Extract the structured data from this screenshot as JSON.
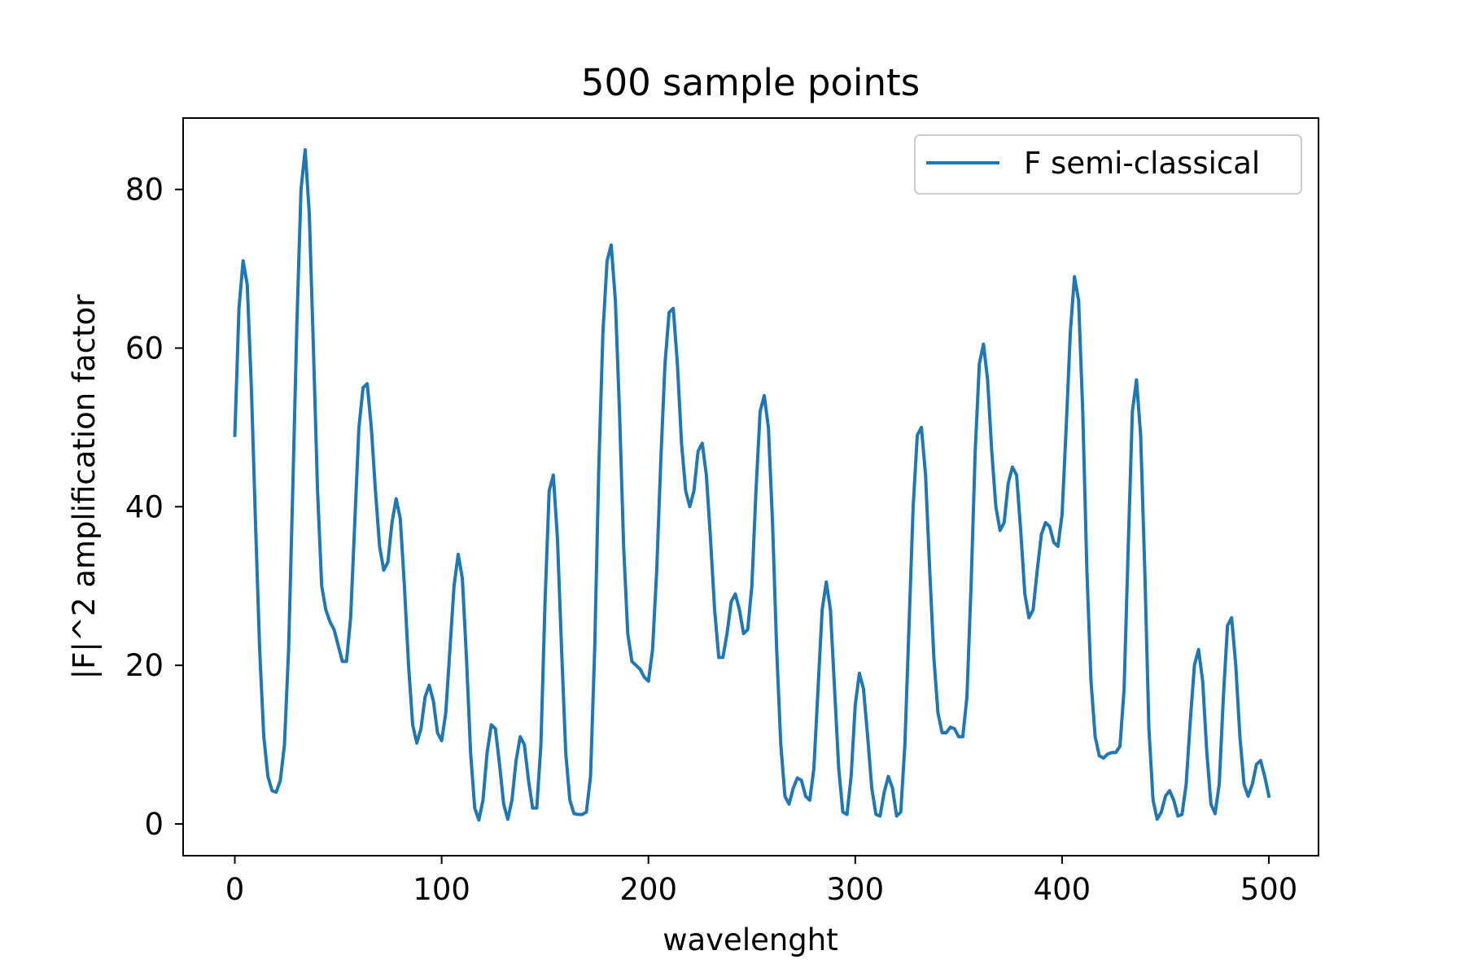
{
  "chart_data": {
    "type": "line",
    "title": "500 sample points",
    "xlabel": "wavelenght",
    "ylabel": "|F|^2 amplification factor",
    "xlim": [
      -25,
      524
    ],
    "ylim": [
      -4,
      89
    ],
    "xticks": [
      0,
      100,
      200,
      300,
      400,
      500
    ],
    "yticks": [
      0,
      20,
      40,
      60,
      80
    ],
    "grid": false,
    "legend_position": "top-right",
    "series": [
      {
        "name": "F semi-classical",
        "color": "#1f77b4",
        "points": [
          [
            0,
            49
          ],
          [
            2,
            65
          ],
          [
            4,
            71
          ],
          [
            6,
            68
          ],
          [
            8,
            55
          ],
          [
            10,
            38
          ],
          [
            12,
            22
          ],
          [
            14,
            11
          ],
          [
            16,
            6
          ],
          [
            18,
            4.2
          ],
          [
            20,
            4
          ],
          [
            22,
            5.5
          ],
          [
            24,
            10
          ],
          [
            26,
            22
          ],
          [
            28,
            42
          ],
          [
            30,
            63
          ],
          [
            32,
            80
          ],
          [
            34,
            85
          ],
          [
            36,
            77
          ],
          [
            38,
            60
          ],
          [
            40,
            42
          ],
          [
            42,
            30
          ],
          [
            44,
            27
          ],
          [
            46,
            25.5
          ],
          [
            48,
            24.5
          ],
          [
            50,
            22.5
          ],
          [
            52,
            20.5
          ],
          [
            54,
            20.5
          ],
          [
            56,
            26
          ],
          [
            58,
            38
          ],
          [
            60,
            50
          ],
          [
            62,
            55
          ],
          [
            64,
            55.5
          ],
          [
            66,
            50
          ],
          [
            68,
            42
          ],
          [
            70,
            35
          ],
          [
            72,
            32
          ],
          [
            74,
            33
          ],
          [
            76,
            38
          ],
          [
            78,
            41
          ],
          [
            80,
            38.5
          ],
          [
            82,
            30
          ],
          [
            84,
            20
          ],
          [
            86,
            12.5
          ],
          [
            88,
            10.2
          ],
          [
            90,
            12
          ],
          [
            92,
            16
          ],
          [
            94,
            17.5
          ],
          [
            96,
            15.5
          ],
          [
            98,
            11.5
          ],
          [
            100,
            10.5
          ],
          [
            102,
            14
          ],
          [
            104,
            22
          ],
          [
            106,
            30
          ],
          [
            108,
            34
          ],
          [
            110,
            31
          ],
          [
            112,
            21
          ],
          [
            114,
            9
          ],
          [
            116,
            2
          ],
          [
            118,
            0.5
          ],
          [
            120,
            3
          ],
          [
            122,
            9
          ],
          [
            124,
            12.5
          ],
          [
            126,
            12
          ],
          [
            128,
            7.5
          ],
          [
            130,
            2.5
          ],
          [
            132,
            0.6
          ],
          [
            134,
            3
          ],
          [
            136,
            8
          ],
          [
            138,
            11
          ],
          [
            140,
            10
          ],
          [
            142,
            5.5
          ],
          [
            144,
            2
          ],
          [
            146,
            2
          ],
          [
            148,
            10
          ],
          [
            150,
            28
          ],
          [
            152,
            42
          ],
          [
            154,
            44
          ],
          [
            156,
            36
          ],
          [
            158,
            22
          ],
          [
            160,
            9
          ],
          [
            162,
            3
          ],
          [
            164,
            1.3
          ],
          [
            166,
            1.2
          ],
          [
            168,
            1.2
          ],
          [
            170,
            1.5
          ],
          [
            172,
            6
          ],
          [
            174,
            22
          ],
          [
            176,
            45
          ],
          [
            178,
            62
          ],
          [
            180,
            71
          ],
          [
            182,
            73
          ],
          [
            184,
            66
          ],
          [
            186,
            52
          ],
          [
            188,
            35
          ],
          [
            190,
            24
          ],
          [
            192,
            20.5
          ],
          [
            194,
            20
          ],
          [
            196,
            19.5
          ],
          [
            198,
            18.5
          ],
          [
            200,
            18
          ],
          [
            202,
            22
          ],
          [
            204,
            32
          ],
          [
            206,
            46
          ],
          [
            208,
            58
          ],
          [
            210,
            64.5
          ],
          [
            212,
            65
          ],
          [
            214,
            58
          ],
          [
            216,
            48
          ],
          [
            218,
            42
          ],
          [
            220,
            40
          ],
          [
            222,
            42
          ],
          [
            224,
            47
          ],
          [
            226,
            48
          ],
          [
            228,
            44
          ],
          [
            230,
            36
          ],
          [
            232,
            27
          ],
          [
            234,
            21
          ],
          [
            236,
            21
          ],
          [
            238,
            24
          ],
          [
            240,
            28
          ],
          [
            242,
            29
          ],
          [
            244,
            27
          ],
          [
            246,
            24
          ],
          [
            248,
            24.5
          ],
          [
            250,
            30
          ],
          [
            252,
            42
          ],
          [
            254,
            52
          ],
          [
            256,
            54
          ],
          [
            258,
            50
          ],
          [
            260,
            38
          ],
          [
            262,
            22
          ],
          [
            264,
            10
          ],
          [
            266,
            3.5
          ],
          [
            268,
            2.5
          ],
          [
            270,
            4.5
          ],
          [
            272,
            5.8
          ],
          [
            274,
            5.5
          ],
          [
            276,
            3.5
          ],
          [
            278,
            3
          ],
          [
            280,
            7
          ],
          [
            282,
            17
          ],
          [
            284,
            27
          ],
          [
            286,
            30.5
          ],
          [
            288,
            27
          ],
          [
            290,
            17
          ],
          [
            292,
            7
          ],
          [
            294,
            1.5
          ],
          [
            296,
            1.2
          ],
          [
            298,
            6
          ],
          [
            300,
            15
          ],
          [
            302,
            19
          ],
          [
            304,
            17
          ],
          [
            306,
            11
          ],
          [
            308,
            4.5
          ],
          [
            310,
            1.2
          ],
          [
            312,
            1
          ],
          [
            314,
            4
          ],
          [
            316,
            6
          ],
          [
            318,
            4.5
          ],
          [
            320,
            1
          ],
          [
            322,
            1.5
          ],
          [
            324,
            10
          ],
          [
            326,
            25
          ],
          [
            328,
            40
          ],
          [
            330,
            49
          ],
          [
            332,
            50
          ],
          [
            334,
            44
          ],
          [
            336,
            32
          ],
          [
            338,
            21
          ],
          [
            340,
            14
          ],
          [
            342,
            11.5
          ],
          [
            344,
            11.5
          ],
          [
            346,
            12.2
          ],
          [
            348,
            12
          ],
          [
            350,
            11
          ],
          [
            352,
            11
          ],
          [
            354,
            16
          ],
          [
            356,
            30
          ],
          [
            358,
            47
          ],
          [
            360,
            58
          ],
          [
            362,
            60.5
          ],
          [
            364,
            56
          ],
          [
            366,
            47
          ],
          [
            368,
            40
          ],
          [
            370,
            37
          ],
          [
            372,
            38
          ],
          [
            374,
            43
          ],
          [
            376,
            45
          ],
          [
            378,
            44
          ],
          [
            380,
            37
          ],
          [
            382,
            29
          ],
          [
            384,
            26
          ],
          [
            386,
            27
          ],
          [
            388,
            32
          ],
          [
            390,
            36.5
          ],
          [
            392,
            38
          ],
          [
            394,
            37.5
          ],
          [
            396,
            35.5
          ],
          [
            398,
            35
          ],
          [
            400,
            39
          ],
          [
            402,
            50
          ],
          [
            404,
            62
          ],
          [
            406,
            69
          ],
          [
            408,
            66
          ],
          [
            410,
            52
          ],
          [
            412,
            32
          ],
          [
            414,
            18
          ],
          [
            416,
            11
          ],
          [
            418,
            8.6
          ],
          [
            420,
            8.3
          ],
          [
            422,
            8.8
          ],
          [
            424,
            9
          ],
          [
            426,
            9
          ],
          [
            428,
            9.8
          ],
          [
            430,
            17
          ],
          [
            432,
            35
          ],
          [
            434,
            52
          ],
          [
            436,
            56
          ],
          [
            438,
            49
          ],
          [
            440,
            32
          ],
          [
            442,
            12
          ],
          [
            444,
            3
          ],
          [
            446,
            0.6
          ],
          [
            448,
            1.5
          ],
          [
            450,
            3.5
          ],
          [
            452,
            4.2
          ],
          [
            454,
            3
          ],
          [
            456,
            1
          ],
          [
            458,
            1.2
          ],
          [
            460,
            5
          ],
          [
            462,
            13
          ],
          [
            464,
            20
          ],
          [
            466,
            22
          ],
          [
            468,
            18
          ],
          [
            470,
            9
          ],
          [
            472,
            2.5
          ],
          [
            474,
            1.3
          ],
          [
            476,
            5
          ],
          [
            478,
            16
          ],
          [
            480,
            25
          ],
          [
            482,
            26
          ],
          [
            484,
            20
          ],
          [
            486,
            11
          ],
          [
            488,
            5
          ],
          [
            490,
            3.5
          ],
          [
            492,
            5
          ],
          [
            494,
            7.5
          ],
          [
            496,
            8
          ],
          [
            498,
            6
          ],
          [
            500,
            3.5
          ]
        ]
      }
    ]
  }
}
